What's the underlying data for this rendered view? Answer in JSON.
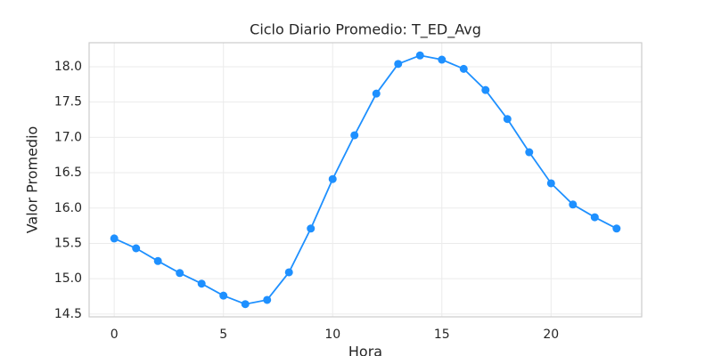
{
  "chart_data": {
    "type": "line",
    "title": "Ciclo Diario Promedio: T_ED_Avg",
    "x_label": "Hora",
    "y_label": "Valor Promedio",
    "x": [
      0,
      1,
      2,
      3,
      4,
      5,
      6,
      7,
      8,
      9,
      10,
      11,
      12,
      13,
      14,
      15,
      16,
      17,
      18,
      19,
      20,
      21,
      22,
      23
    ],
    "values": [
      15.57,
      15.43,
      15.25,
      15.08,
      14.93,
      14.76,
      14.64,
      14.7,
      15.09,
      15.71,
      16.41,
      17.03,
      17.62,
      18.04,
      18.16,
      18.1,
      17.97,
      17.67,
      17.26,
      16.79,
      16.35,
      16.05,
      15.87,
      15.71
    ],
    "color": "#1e90ff",
    "markers": true,
    "xlim": [
      -1.15,
      24.15
    ],
    "xticks": [
      0,
      5,
      10,
      15,
      20
    ],
    "ylim": [
      14.46,
      18.34
    ],
    "yticks": [
      14.5,
      {
        "value": 15.0,
        "label": "15.0"
      },
      15.5,
      {
        "value": 16.0,
        "label": "16.0"
      },
      16.5,
      {
        "value": 17.0,
        "label": "17.0"
      },
      17.5,
      {
        "value": 18.0,
        "label": "18.0"
      }
    ],
    "grid": true
  }
}
